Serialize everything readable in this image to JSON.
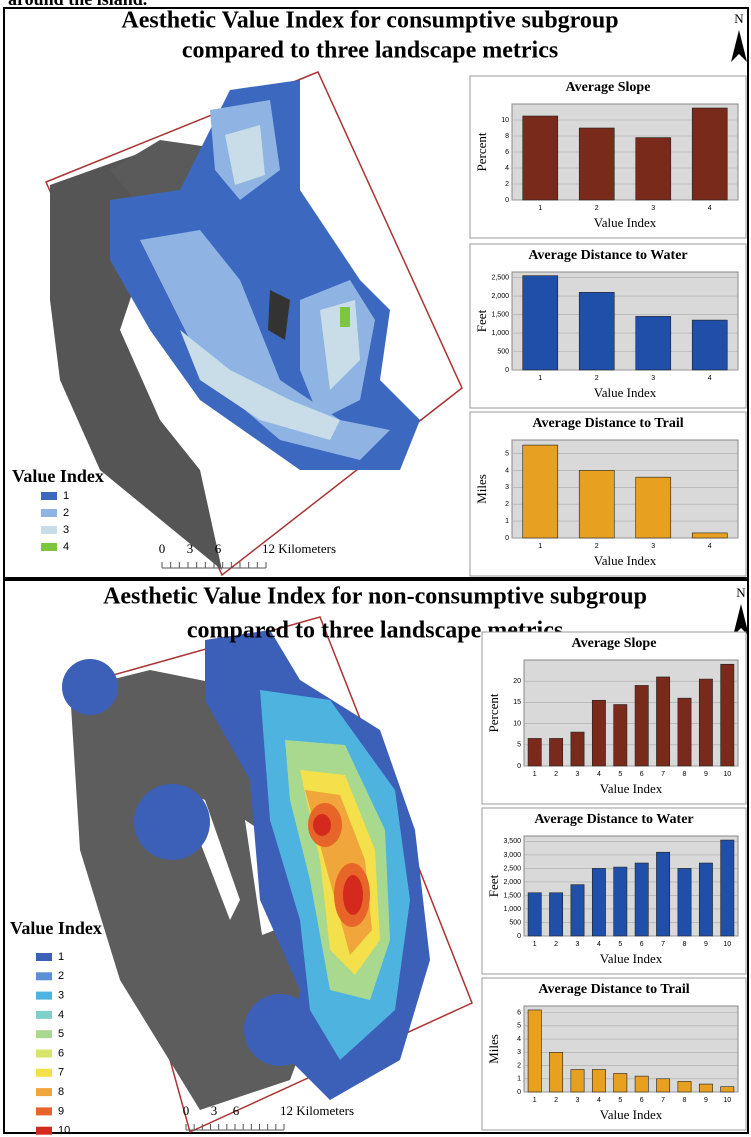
{
  "header_fragment": "around the island.",
  "panels": [
    {
      "title_lines": [
        "Aesthetic Value Index for consumptive subgroup",
        "compared to three landscape metrics"
      ],
      "north": "N",
      "legend_title": "Value Index",
      "legend": [
        {
          "label": "1",
          "color": "#3d68c0"
        },
        {
          "label": "2",
          "color": "#8fb4e3"
        },
        {
          "label": "3",
          "color": "#c8dde8"
        },
        {
          "label": "4",
          "color": "#7cc540"
        }
      ],
      "scale_labels": [
        "0",
        "3",
        "6",
        "12 Kilometers"
      ]
    },
    {
      "title_lines": [
        "Aesthetic Value Index for non-consumptive subgroup",
        "compared to three landscape metrics"
      ],
      "north": "N",
      "legend_title": "Value Index",
      "legend": [
        {
          "label": "1",
          "color": "#3c5fb8"
        },
        {
          "label": "2",
          "color": "#5b8fd6"
        },
        {
          "label": "3",
          "color": "#4fb3e0"
        },
        {
          "label": "4",
          "color": "#7fd0c8"
        },
        {
          "label": "5",
          "color": "#a9d88f"
        },
        {
          "label": "6",
          "color": "#d8e36a"
        },
        {
          "label": "7",
          "color": "#f3e04a"
        },
        {
          "label": "8",
          "color": "#f0a63a"
        },
        {
          "label": "9",
          "color": "#e8652a"
        },
        {
          "label": "10",
          "color": "#d42a1e"
        }
      ],
      "scale_labels": [
        "0",
        "3",
        "6",
        "12 Kilometers"
      ]
    }
  ],
  "chart_data": [
    {
      "type": "bar",
      "title": "Average Slope",
      "ylabel": "Percent",
      "xlabel": "Value Index",
      "categories": [
        "1",
        "2",
        "3",
        "4"
      ],
      "values": [
        10.5,
        9,
        7.8,
        11.5
      ],
      "color": "#7a2a1a",
      "ylim": [
        0,
        12
      ],
      "yticks": [
        0,
        2,
        4,
        6,
        8,
        10
      ],
      "grid": true
    },
    {
      "type": "bar",
      "title": "Average Distance to Water",
      "ylabel": "Feet",
      "xlabel": "Value Index",
      "categories": [
        "1",
        "2",
        "3",
        "4"
      ],
      "values": [
        2550,
        2100,
        1450,
        1350
      ],
      "color": "#1f4fa8",
      "ylim": [
        0,
        2650
      ],
      "yticks": [
        0,
        500,
        {
          "value": 1000,
          "label": "1,000"
        },
        {
          "value": 1500,
          "label": "1,500"
        },
        {
          "value": 2000,
          "label": "2,000"
        },
        {
          "value": 2500,
          "label": "2,500"
        }
      ],
      "grid": true
    },
    {
      "type": "bar",
      "title": "Average Distance to Trail",
      "ylabel": "Miles",
      "xlabel": "Value Index",
      "categories": [
        "1",
        "2",
        "3",
        "4"
      ],
      "values": [
        5.5,
        4,
        3.6,
        0.3
      ],
      "color": "#e8a020",
      "ylim": [
        0,
        5.8
      ],
      "yticks": [
        0,
        1,
        2,
        3,
        4,
        5
      ],
      "grid": true
    },
    {
      "type": "bar",
      "title": "Average Slope",
      "ylabel": "Percent",
      "xlabel": "Value Index",
      "categories": [
        "1",
        "2",
        "3",
        "4",
        "5",
        "6",
        "7",
        "8",
        "9",
        "10"
      ],
      "values": [
        6.5,
        6.5,
        8,
        15.5,
        14.5,
        19,
        21,
        16,
        20.5,
        24
      ],
      "color": "#7a2a1a",
      "ylim": [
        0,
        25
      ],
      "yticks": [
        0,
        5,
        10,
        15,
        20
      ],
      "grid": true
    },
    {
      "type": "bar",
      "title": "Average Distance to Water",
      "ylabel": "Feet",
      "xlabel": "Value Index",
      "categories": [
        "1",
        "2",
        "3",
        "4",
        "5",
        "6",
        "7",
        "8",
        "9",
        "10"
      ],
      "values": [
        1600,
        1600,
        1900,
        2500,
        2550,
        2700,
        3100,
        2500,
        2700,
        3550
      ],
      "color": "#1f4fa8",
      "ylim": [
        0,
        3700
      ],
      "yticks": [
        0,
        500,
        {
          "value": 1000,
          "label": "1,000"
        },
        {
          "value": 1500,
          "label": "1,500"
        },
        {
          "value": 2000,
          "label": "2,000"
        },
        {
          "value": 2500,
          "label": "2,500"
        },
        {
          "value": 3000,
          "label": "3,000"
        },
        {
          "value": 3500,
          "label": "3,500"
        }
      ],
      "grid": true
    },
    {
      "type": "bar",
      "title": "Average Distance to Trail",
      "ylabel": "Miles",
      "xlabel": "Value Index",
      "categories": [
        "1",
        "2",
        "3",
        "4",
        "5",
        "6",
        "7",
        "8",
        "9",
        "10"
      ],
      "values": [
        6.2,
        3,
        1.7,
        1.7,
        1.4,
        1.2,
        1.0,
        0.8,
        0.6,
        0.4
      ],
      "color": "#e8a020",
      "ylim": [
        0,
        6.5
      ],
      "yticks": [
        0,
        1,
        2,
        3,
        4,
        5,
        6
      ],
      "grid": true
    }
  ]
}
